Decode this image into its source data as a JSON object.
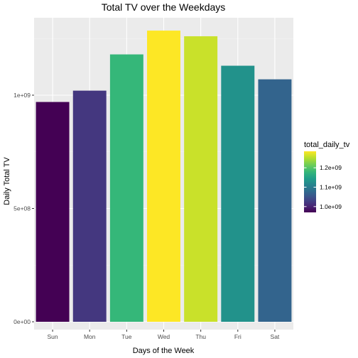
{
  "chart_data": {
    "type": "bar",
    "title": "Total TV over the Weekdays",
    "xlabel": "Days of the Week",
    "ylabel": "Daily Total TV",
    "categories": [
      "Sun",
      "Mon",
      "Tue",
      "Wed",
      "Thu",
      "Fri",
      "Sat"
    ],
    "values": [
      970000000,
      1020000000,
      1180000000,
      1285000000,
      1260000000,
      1130000000,
      1070000000
    ],
    "ylim": [
      0,
      1330000000
    ],
    "yticks": [
      {
        "value": 0,
        "label": "0e+00"
      },
      {
        "value": 500000000,
        "label": "5e+08"
      },
      {
        "value": 1000000000,
        "label": "1e+09"
      }
    ],
    "grid": true,
    "legend": {
      "title": "total_daily_tv",
      "position": "right",
      "range": [
        970000000,
        1285000000
      ],
      "ticks": [
        {
          "value": 1000000000,
          "label": "1.0e+09"
        },
        {
          "value": 1100000000,
          "label": "1.1e+09"
        },
        {
          "value": 1200000000,
          "label": "1.2e+09"
        }
      ]
    },
    "colorscale": "viridis",
    "colors": {
      "panel_background": "#ebebeb",
      "grid_major": "#ffffff",
      "axis_text": "#4d4d4d"
    }
  }
}
